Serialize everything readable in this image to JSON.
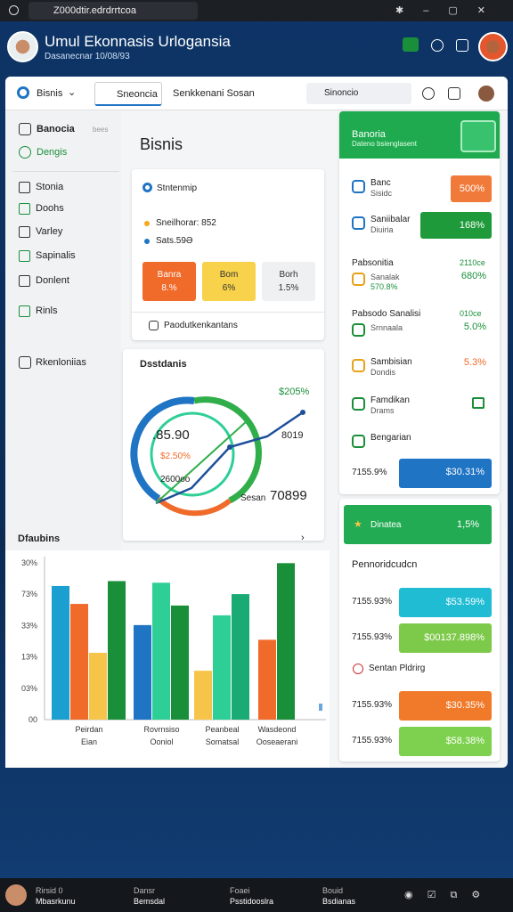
{
  "browser": {
    "url": "Z000dtir.edrdrrtcoa"
  },
  "header": {
    "title": "Umul Ekonnasis Urlogansia",
    "subtitle": "Dasanecnar 10/08/93"
  },
  "toolbar": {
    "dropdown": "Bisnis",
    "tabs": [
      "Sneoncia",
      "Senkkenani Sosan"
    ],
    "search": "Sinoncio"
  },
  "sidebar": {
    "top": [
      "Banocia",
      "Dengis"
    ],
    "meta": "bees",
    "items": [
      "Stonia",
      "Doohs",
      "Varley",
      "Sapinalis",
      "Donlent",
      "Rinls"
    ],
    "bottom": "Rkenloniias"
  },
  "main": {
    "title": "Bisnis",
    "summary": {
      "heading": "Stntenmip",
      "lines": [
        "Sneilhorar: 852",
        "Sats.59Ə"
      ],
      "tiles": [
        {
          "label": "Banra",
          "value": "8.%"
        },
        {
          "label": "Bom",
          "value": "6%"
        },
        {
          "label": "Borh",
          "value": "1.5%"
        }
      ],
      "footer": "Paodutkenkantans"
    },
    "trend": {
      "title": "Dsstdanis",
      "labels": [
        "$205%",
        "8019",
        ".85.90",
        "$2.50%",
        "2600oo"
      ],
      "caption": "Sesan",
      "total": "70899"
    }
  },
  "bar_chart": {
    "title": "Dfaubins",
    "axis_labels": [
      "30%",
      "73%",
      "33%",
      "13%",
      "03%",
      "00"
    ],
    "ylim": [
      0,
      100
    ],
    "groups": [
      {
        "label": [
          "Peirdan",
          "Eian"
        ],
        "bars": [
          {
            "color": "#1a9fd0",
            "value": 82
          },
          {
            "color": "#f06a2a",
            "value": 71
          },
          {
            "color": "#f7c44a",
            "value": 41
          },
          {
            "color": "#1a8f3a",
            "value": 85
          }
        ]
      },
      {
        "label": [
          "Rovrnsiso",
          "Ooniol"
        ],
        "bars": [
          {
            "color": "#1f74c4",
            "value": 58
          },
          {
            "color": "#2ecf96",
            "value": 84
          },
          {
            "color": "#1a8f3a",
            "value": 70
          }
        ]
      },
      {
        "label": [
          "Peanbeal",
          "Somatsal"
        ],
        "bars": [
          {
            "color": "#f7c44a",
            "value": 30
          },
          {
            "color": "#2ecf96",
            "value": 64
          },
          {
            "color": "#1aaa74",
            "value": 77
          }
        ]
      },
      {
        "label": [
          "Wasdeond",
          "Ooseaerani"
        ],
        "bars": [
          {
            "color": "#f06a2a",
            "value": 49
          },
          {
            "color": "#1a8f3a",
            "value": 96
          }
        ]
      }
    ]
  },
  "right": {
    "header": {
      "title": "Banoria",
      "subtitle": "Dateno bsienglasent"
    },
    "items": [
      {
        "title": "Banc",
        "sub": "Sisidc",
        "value": "500%"
      },
      {
        "title": "Saniibalar",
        "sub": "Diuiria",
        "value": "168%"
      },
      {
        "title": "Pabsonitia",
        "sub": "Sanalak",
        "note": "2110ce",
        "detail": "570.8%",
        "value": "680%"
      },
      {
        "title": "Pabsodo Sanalisi",
        "sub": "Srnnaala",
        "note": "010ce",
        "value": "5.0%"
      },
      {
        "title": "Sambisian",
        "sub": "Dondis",
        "value": "5.3%"
      },
      {
        "title": "Famdikan",
        "sub": "Drams"
      },
      {
        "title": "Bengarian"
      }
    ],
    "total": {
      "label": "7155.9%",
      "value": "$30.31%"
    },
    "highlight": {
      "title": "Dinatea",
      "value": "1,5%"
    },
    "section": "Pennoridcudcn",
    "rows": [
      {
        "label": "7155.93%",
        "value": "$53.59%"
      },
      {
        "label": "7155.93%",
        "value": "$00137.898%"
      },
      {
        "label": "Sentan Pldrirg"
      },
      {
        "label": "7155.93%",
        "value": "$30.35%"
      },
      {
        "label": "7155.93%",
        "value": "$58.38%"
      }
    ]
  },
  "taskbar": [
    [
      "Rirsid 0",
      "Mbasrkunu"
    ],
    [
      "Dansr",
      "Bemsdal"
    ],
    [
      "Foaei",
      "Psstidooslra"
    ],
    [
      "Bouid",
      "Bsdianas"
    ]
  ]
}
